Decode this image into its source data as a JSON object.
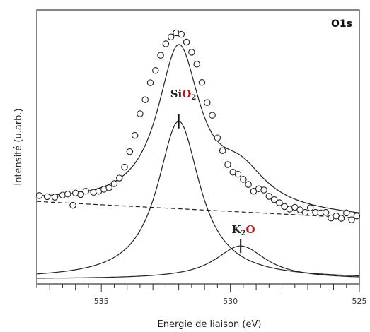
{
  "chart_data": {
    "type": "scatter",
    "title": "",
    "panel_label": "O1s",
    "xlabel": "Energie de liaison  (eV)",
    "ylabel": "Intensité  (u.arb.)",
    "xlim": [
      537.5,
      525
    ],
    "x_reversed": true,
    "ylim": [
      0,
      1
    ],
    "y_ticks_shown": false,
    "x_ticks": [
      535,
      530,
      525
    ],
    "x_tick_labels": [
      "535",
      "530",
      "525"
    ],
    "x_minor_step": 0.5,
    "grid": false,
    "series": [
      {
        "kind": "measured-points",
        "marker": "open-circle",
        "x": [
          537.4,
          537.1,
          536.8,
          536.5,
          536.3,
          536.0,
          535.8,
          535.6,
          535.3,
          535.1,
          534.9,
          534.7,
          534.5,
          534.3,
          534.1,
          533.9,
          533.7,
          533.5,
          533.3,
          533.1,
          532.9,
          532.7,
          532.5,
          532.3,
          532.1,
          531.9,
          531.7,
          531.5,
          531.3,
          531.1,
          530.9,
          530.7,
          530.5,
          530.3,
          530.1,
          529.9,
          529.7,
          529.5,
          529.3,
          529.1,
          528.9,
          528.7,
          528.5,
          528.3,
          528.1,
          527.9,
          527.7,
          527.5,
          527.3,
          527.1,
          526.9,
          526.7,
          526.5,
          526.3,
          526.1,
          525.9,
          525.7,
          525.5,
          525.3,
          525.1
        ],
        "y": [
          0.328,
          0.324,
          0.322,
          0.33,
          0.334,
          0.338,
          0.332,
          0.345,
          0.341,
          0.345,
          0.353,
          0.359,
          0.375,
          0.397,
          0.44,
          0.501,
          0.565,
          0.65,
          0.705,
          0.772,
          0.82,
          0.88,
          0.925,
          0.952,
          0.968,
          0.962,
          0.932,
          0.892,
          0.845,
          0.773,
          0.694,
          0.644,
          0.555,
          0.505,
          0.45,
          0.42,
          0.412,
          0.392,
          0.372,
          0.345,
          0.355,
          0.35,
          0.325,
          0.312,
          0.3,
          0.285,
          0.275,
          0.282,
          0.272,
          0.262,
          0.28,
          0.262,
          0.26,
          0.262,
          0.24,
          0.248,
          0.239,
          0.26,
          0.233,
          0.248
        ]
      },
      {
        "kind": "outlier-point",
        "marker": "open-circle",
        "x": [
          536.1
        ],
        "y": [
          0.29
        ]
      },
      {
        "kind": "fit-envelope",
        "line": "solid"
      },
      {
        "kind": "background",
        "line": "dashed",
        "x": [
          537.5,
          525
        ],
        "y": [
          0.305,
          0.24
        ]
      },
      {
        "kind": "component",
        "name": "SiO2",
        "label_parts": [
          "Si",
          "O",
          "2"
        ],
        "line": "solid",
        "center": 532.0,
        "height": 0.62,
        "fwhm": 2.0
      },
      {
        "kind": "component",
        "name": "K2O",
        "label_parts": [
          "K",
          "2",
          "O"
        ],
        "line": "solid",
        "center": 529.6,
        "height": 0.13,
        "fwhm": 2.4
      }
    ]
  }
}
